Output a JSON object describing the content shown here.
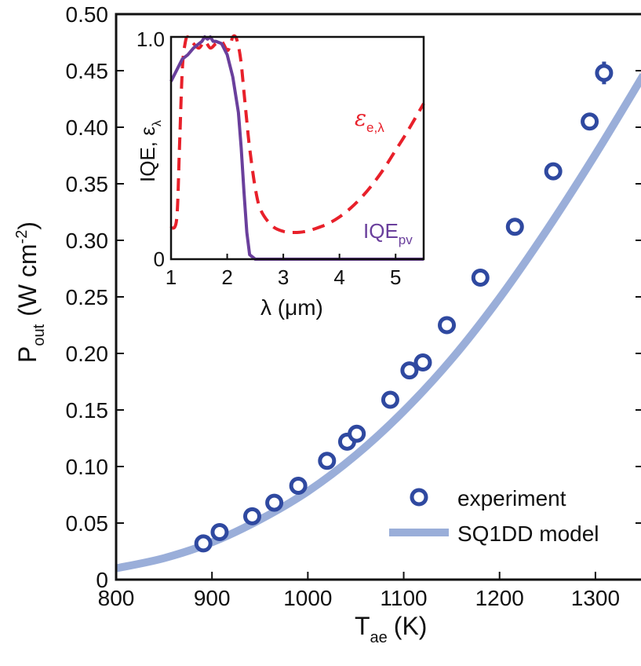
{
  "colors": {
    "experiment": "#2f49a0",
    "model": "#9aaed9",
    "emissivity": "#e8202a",
    "iqe": "#6a3f9c",
    "axis": "#111111"
  },
  "chart_data": [
    {
      "type": "scatter",
      "xlabel": "T",
      "xlabel_sub": "ae",
      "xlabel_unit": "(K)",
      "ylabel": "P",
      "ylabel_sub": "out",
      "ylabel_unit_pre": "(W cm",
      "ylabel_unit_sup": "-2",
      "ylabel_unit_post": ")",
      "xlim": [
        800,
        1350
      ],
      "ylim": [
        0,
        0.5
      ],
      "xticks": [
        800,
        900,
        1000,
        1100,
        1200,
        1300
      ],
      "xtick_labels": [
        "800",
        "900",
        "1000",
        "1100",
        "1200",
        "1300"
      ],
      "yticks": [
        0,
        0.05,
        0.1,
        0.15,
        0.2,
        0.25,
        0.3,
        0.35,
        0.4,
        0.45,
        0.5
      ],
      "ytick_labels": [
        "0",
        "0.05",
        "0.10",
        "0.15",
        "0.20",
        "0.25",
        "0.30",
        "0.35",
        "0.40",
        "0.45",
        "0.50"
      ],
      "legend_position": "bottom-right",
      "series": [
        {
          "name": "experiment",
          "type": "scatter",
          "x": [
            891,
            908,
            942,
            965,
            990,
            1020,
            1041,
            1051,
            1086,
            1106,
            1120,
            1145,
            1180,
            1216,
            1256,
            1294,
            1309
          ],
          "y": [
            0.032,
            0.042,
            0.056,
            0.068,
            0.083,
            0.105,
            0.122,
            0.129,
            0.159,
            0.185,
            0.192,
            0.225,
            0.267,
            0.312,
            0.361,
            0.405,
            0.448
          ],
          "yerr": [
            0.002,
            0.003,
            0.002,
            0.002,
            0.002,
            0.002,
            0.003,
            0.003,
            0.002,
            0.003,
            0.003,
            0.002,
            0.002,
            0.004,
            0.005,
            0.007,
            0.01
          ]
        },
        {
          "name": "SQ1DD model",
          "type": "line",
          "x": [
            800,
            850,
            900,
            950,
            1000,
            1050,
            1100,
            1150,
            1200,
            1250,
            1300,
            1350
          ],
          "y": [
            0.01,
            0.019,
            0.033,
            0.053,
            0.078,
            0.11,
            0.149,
            0.195,
            0.249,
            0.31,
            0.376,
            0.446
          ]
        }
      ]
    },
    {
      "type": "line",
      "position": "inset-top-left",
      "xlabel": "λ (μm)",
      "ylabel": "IQE, ε",
      "ylabel_sub": "λ",
      "xlim": [
        1,
        5.5
      ],
      "ylim": [
        0,
        1
      ],
      "xticks": [
        1,
        2,
        3,
        4,
        5
      ],
      "xtick_labels": [
        "1",
        "2",
        "3",
        "4",
        "5"
      ],
      "yticks": [
        0,
        1
      ],
      "ytick_labels": [
        "0",
        "1.0"
      ],
      "series": [
        {
          "name": "ε",
          "name_sub": "e,λ",
          "style": "dashed",
          "x": [
            1.0,
            1.1,
            1.15,
            1.2,
            1.25,
            1.3,
            1.4,
            1.5,
            1.6,
            1.7,
            1.8,
            1.9,
            2.0,
            2.05,
            2.1,
            2.15,
            2.2,
            2.25,
            2.3,
            2.35,
            2.4,
            2.5,
            2.6,
            2.8,
            3.0,
            3.2,
            3.4,
            3.6,
            3.8,
            4.0,
            4.2,
            4.4,
            4.6,
            4.8,
            5.0,
            5.2,
            5.5
          ],
          "y": [
            0.14,
            0.18,
            0.5,
            0.85,
            0.97,
            1.0,
            0.97,
            0.95,
            0.98,
            0.95,
            0.97,
            0.98,
            0.94,
            0.96,
            1.0,
            1.0,
            0.96,
            0.88,
            0.75,
            0.62,
            0.5,
            0.32,
            0.22,
            0.15,
            0.125,
            0.12,
            0.125,
            0.14,
            0.16,
            0.19,
            0.23,
            0.28,
            0.34,
            0.41,
            0.49,
            0.57,
            0.7
          ]
        },
        {
          "name": "IQE",
          "name_sub": "pv",
          "style": "solid",
          "x": [
            1.0,
            1.1,
            1.2,
            1.3,
            1.4,
            1.5,
            1.55,
            1.6,
            1.65,
            1.7,
            1.75,
            1.8,
            1.9,
            2.0,
            2.1,
            2.2,
            2.25,
            2.3,
            2.35,
            2.4,
            2.5,
            3.0,
            4.0,
            5.0,
            5.5
          ],
          "y": [
            0.8,
            0.85,
            0.9,
            0.92,
            0.95,
            0.97,
            0.98,
            1.0,
            0.99,
            1.0,
            0.98,
            0.98,
            0.97,
            0.92,
            0.82,
            0.66,
            0.5,
            0.3,
            0.12,
            0.02,
            0.0,
            0.0,
            0.0,
            0.0,
            0.0
          ]
        }
      ]
    }
  ]
}
